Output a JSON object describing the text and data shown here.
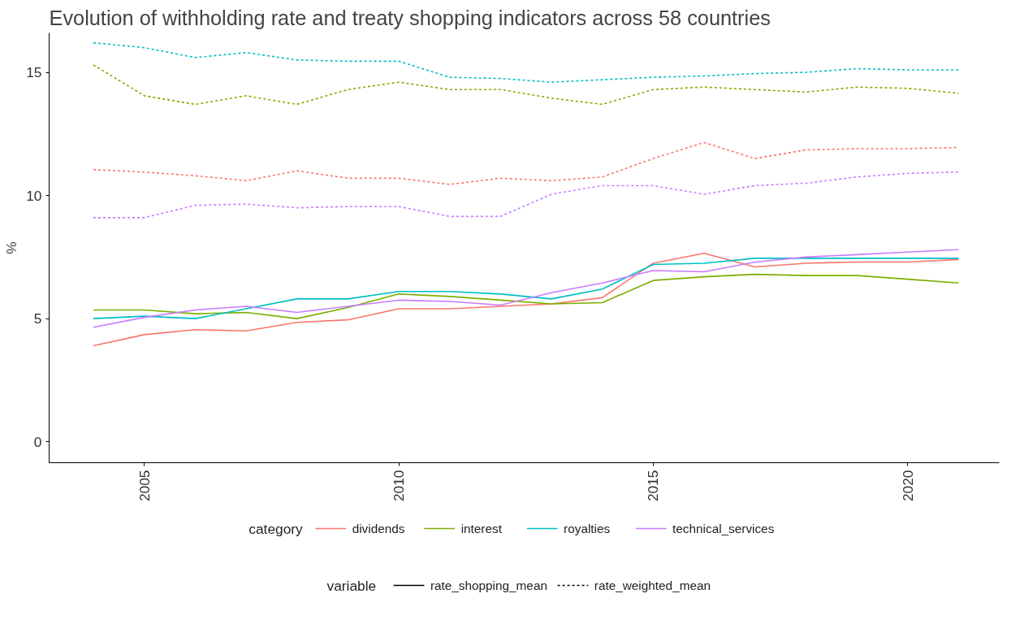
{
  "chart_data": {
    "type": "line",
    "title": "Evolution of withholding rate and treaty shopping indicators across 58 countries",
    "ylabel": "%",
    "x": [
      2004,
      2005,
      2006,
      2007,
      2008,
      2009,
      2010,
      2011,
      2012,
      2013,
      2014,
      2015,
      2016,
      2017,
      2018,
      2019,
      2020,
      2021
    ],
    "xlim": [
      2003.13,
      2021.8
    ],
    "xticks": [
      2005,
      2010,
      2015,
      2020
    ],
    "ylim": [
      -0.85,
      16.6
    ],
    "yticks": [
      0,
      5,
      10,
      15
    ],
    "grid": false,
    "legend": "bottom",
    "legend_title": "category",
    "series": [
      {
        "name": "dividends",
        "color": "#f8766d",
        "line_style": "solid",
        "values": [
          3.9,
          4.35,
          4.55,
          4.5,
          4.85,
          4.95,
          5.4,
          5.4,
          5.5,
          5.6,
          5.85,
          7.25,
          7.65,
          7.1,
          7.25,
          7.3,
          7.3,
          7.4
        ]
      },
      {
        "name": "interest",
        "color": "#7cae00",
        "line_style": "solid",
        "values": [
          5.35,
          5.35,
          5.2,
          5.25,
          5.0,
          5.45,
          6.0,
          5.9,
          5.75,
          5.6,
          5.65,
          6.55,
          6.7,
          6.8,
          6.75,
          6.75,
          6.6,
          6.45
        ]
      },
      {
        "name": "royalties",
        "color": "#00bfc4",
        "line_style": "solid",
        "values": [
          5.0,
          5.1,
          5.0,
          5.4,
          5.8,
          5.8,
          6.1,
          6.1,
          6.0,
          5.8,
          6.2,
          7.2,
          7.25,
          7.45,
          7.45,
          7.45,
          7.45,
          7.45
        ]
      },
      {
        "name": "technical_services",
        "color": "#c77cff",
        "line_style": "solid",
        "values": [
          4.65,
          5.05,
          5.35,
          5.5,
          5.25,
          5.5,
          5.75,
          5.7,
          5.55,
          6.05,
          6.45,
          6.95,
          6.9,
          7.3,
          7.5,
          7.6,
          7.7,
          7.8
        ]
      },
      {
        "color": "#f8766d",
        "line_style": "dotted",
        "values": [
          11.05,
          10.95,
          10.8,
          10.6,
          11.0,
          10.7,
          10.7,
          10.45,
          10.7,
          10.6,
          10.75,
          11.5,
          12.15,
          11.5,
          11.85,
          11.9,
          11.9,
          11.95
        ]
      },
      {
        "color": "#7cae00",
        "line_style": "dotted",
        "values": [
          15.3,
          14.05,
          13.7,
          14.05,
          13.7,
          14.3,
          14.6,
          14.3,
          14.3,
          13.95,
          13.7,
          14.3,
          14.4,
          14.3,
          14.2,
          14.4,
          14.35,
          14.15
        ]
      },
      {
        "color": "#00bfc4",
        "line_style": "dotted",
        "values": [
          16.2,
          16.0,
          15.6,
          15.8,
          15.5,
          15.45,
          15.45,
          14.8,
          14.75,
          14.6,
          14.7,
          14.8,
          14.85,
          14.95,
          15.0,
          15.15,
          15.1,
          15.1
        ]
      },
      {
        "color": "#c77cff",
        "line_style": "dotted",
        "values": [
          9.1,
          9.1,
          9.6,
          9.65,
          9.5,
          9.55,
          9.55,
          9.15,
          9.15,
          10.05,
          10.4,
          10.4,
          10.05,
          10.4,
          10.5,
          10.75,
          10.9,
          10.95
        ]
      }
    ],
    "annotations": [
      "variable",
      "rate_shopping_mean",
      "rate_weighted_mean"
    ]
  }
}
